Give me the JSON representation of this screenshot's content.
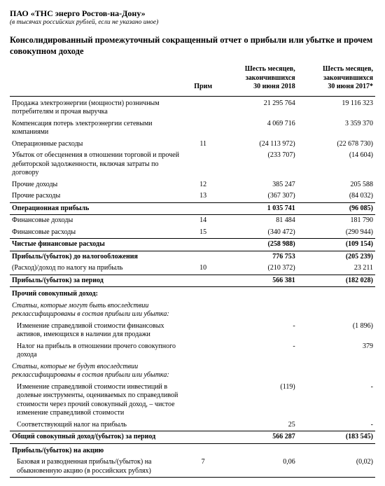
{
  "header": {
    "company": "ПАО «ТНС энерго Ростов-на-Дону»",
    "subnote": "(в тысячах российских рублей, если не указано иное)",
    "title": "Консолидированный промежуточный сокращенный отчет о прибыли или убытке и прочем совокупном доходе"
  },
  "columns": {
    "note": "Прим",
    "col1_line1": "Шесть месяцев,",
    "col1_line2": "закончившихся",
    "col1_line3": "30 июня 2018",
    "col2_line1": "Шесть месяцев,",
    "col2_line2": "закончившихся",
    "col2_line3": "30 июня 2017*"
  },
  "rows": {
    "r0": {
      "desc": "Продажа электроэнергии (мощности) розничным потребителям и прочая выручка",
      "note": "",
      "v1": "21 295 764",
      "v2": "19 116 323"
    },
    "r1": {
      "desc": "Компенсация потерь электроэнергии сетевыми компаниями",
      "note": "",
      "v1": "4 069 716",
      "v2": "3 359 370"
    },
    "r2": {
      "desc": "Операционные расходы",
      "note": "11",
      "v1": "(24 113 972)",
      "v2": "(22 678 730)"
    },
    "r3": {
      "desc": "Убыток от обесценения в отношении торговой и прочей дебиторской задолженности, включая затраты по договору",
      "note": "",
      "v1": "(233 707)",
      "v2": "(14 604)"
    },
    "r4": {
      "desc": "Прочие доходы",
      "note": "12",
      "v1": "385 247",
      "v2": "205 588"
    },
    "r5": {
      "desc": "Прочие расходы",
      "note": "13",
      "v1": "(367 307)",
      "v2": "(84 032)"
    },
    "r6": {
      "desc": "Операционная прибыль",
      "note": "",
      "v1": "1 035 741",
      "v2": "(96 085)"
    },
    "r7": {
      "desc": "Финансовые доходы",
      "note": "14",
      "v1": "81 484",
      "v2": "181 790"
    },
    "r8": {
      "desc": "Финансовые расходы",
      "note": "15",
      "v1": "(340 472)",
      "v2": "(290 944)"
    },
    "r9": {
      "desc": "Чистые финансовые расходы",
      "note": "",
      "v1": "(258 988)",
      "v2": "(109 154)"
    },
    "r10": {
      "desc": "Прибыль/(убыток) до налогообложения",
      "note": "",
      "v1": "776 753",
      "v2": "(205 239)"
    },
    "r11": {
      "desc": "(Расход)/доход по налогу на прибыль",
      "note": "10",
      "v1": "(210 372)",
      "v2": "23 211"
    },
    "r12": {
      "desc": "Прибыль/(убыток) за период",
      "note": "",
      "v1": "566 381",
      "v2": "(182 028)"
    },
    "r13": {
      "desc": "Прочий совокупный доход:",
      "note": "",
      "v1": "",
      "v2": ""
    },
    "r14": {
      "desc": "Статьи, которые могут быть впоследствии реклассифицированы в состав прибыли или убытка:",
      "note": "",
      "v1": "",
      "v2": ""
    },
    "r15": {
      "desc": "Изменение справедливой стоимости финансовых активов, имеющихся в наличии для продажи",
      "note": "",
      "v1": "-",
      "v2": "(1 896)"
    },
    "r16": {
      "desc": "Налог на прибыль в отношении прочего совокупного дохода",
      "note": "",
      "v1": "-",
      "v2": "379"
    },
    "r17": {
      "desc": "Статьи, которые не будут впоследствии реклассифицированы в состав прибыли или убытка:",
      "note": "",
      "v1": "",
      "v2": ""
    },
    "r18": {
      "desc": "Изменение справедливой стоимости инвестиций в долевые инструменты, оцениваемых по справедливой стоимости через прочий совокупный доход, – чистое изменение справедливой стоимости",
      "note": "",
      "v1": "(119)",
      "v2": "-"
    },
    "r19": {
      "desc": "Соответствующий налог на прибыль",
      "note": "",
      "v1": "25",
      "v2": "-"
    },
    "r20": {
      "desc": "Общий совокупный доход/(убыток) за период",
      "note": "",
      "v1": "566 287",
      "v2": "(183 545)"
    },
    "r21": {
      "desc": "Прибыль/(убыток) на акцию",
      "note": "",
      "v1": "",
      "v2": ""
    },
    "r22": {
      "desc": "Базовая и разводненная прибыль/(убыток) на обыкновенную акцию (в российских рублях)",
      "note": "7",
      "v1": "0,06",
      "v2": "(0,02)"
    }
  }
}
